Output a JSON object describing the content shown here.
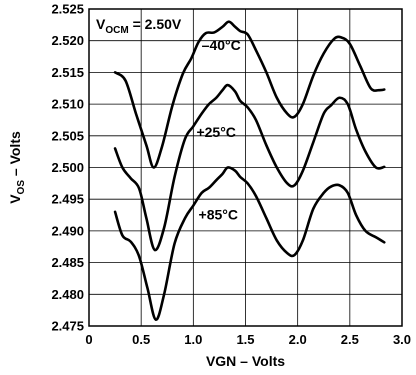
{
  "chart_data": {
    "type": "line",
    "xlabel": "VGN – Volts",
    "ylabel_main": "V",
    "ylabel_sub": "OS",
    "ylabel_rest": " – Volts",
    "annotation": {
      "prefix": "V",
      "sub": "OCM",
      "rest": " = 2.50V"
    },
    "xlim": [
      0,
      3.0
    ],
    "ylim": [
      2.475,
      2.525
    ],
    "xticks": [
      0,
      0.5,
      1.0,
      1.5,
      2.0,
      2.5,
      3.0
    ],
    "xtick_labels": [
      "0",
      "0.5",
      "1.0",
      "1.5",
      "2.0",
      "2.5",
      "3.0"
    ],
    "yticks": [
      2.475,
      2.48,
      2.485,
      2.49,
      2.495,
      2.5,
      2.505,
      2.51,
      2.515,
      2.52,
      2.525
    ],
    "ytick_labels": [
      "2.475",
      "2.480",
      "2.485",
      "2.490",
      "2.495",
      "2.500",
      "2.505",
      "2.510",
      "2.515",
      "2.520",
      "2.525"
    ],
    "grid": true,
    "series": [
      {
        "name": "–40°C",
        "label_at": [
          1.08,
          2.5185
        ],
        "points": [
          [
            0.25,
            2.515
          ],
          [
            0.35,
            2.5137
          ],
          [
            0.45,
            2.5085
          ],
          [
            0.55,
            2.5035
          ],
          [
            0.62,
            2.5
          ],
          [
            0.7,
            2.5033
          ],
          [
            0.8,
            2.5098
          ],
          [
            0.9,
            2.5148
          ],
          [
            0.98,
            2.5172
          ],
          [
            1.05,
            2.5198
          ],
          [
            1.12,
            2.5212
          ],
          [
            1.2,
            2.5213
          ],
          [
            1.28,
            2.5222
          ],
          [
            1.34,
            2.523
          ],
          [
            1.4,
            2.5222
          ],
          [
            1.45,
            2.5215
          ],
          [
            1.52,
            2.521
          ],
          [
            1.6,
            2.5185
          ],
          [
            1.7,
            2.515
          ],
          [
            1.8,
            2.511
          ],
          [
            1.9,
            2.5085
          ],
          [
            1.97,
            2.508
          ],
          [
            2.05,
            2.51
          ],
          [
            2.15,
            2.5145
          ],
          [
            2.25,
            2.518
          ],
          [
            2.35,
            2.5203
          ],
          [
            2.42,
            2.5205
          ],
          [
            2.5,
            2.5195
          ],
          [
            2.6,
            2.516
          ],
          [
            2.7,
            2.5125
          ],
          [
            2.78,
            2.5122
          ],
          [
            2.83,
            2.5123
          ]
        ]
      },
      {
        "name": "+25°C",
        "label_at": [
          1.03,
          2.5048
        ],
        "points": [
          [
            0.25,
            2.503
          ],
          [
            0.32,
            2.5
          ],
          [
            0.4,
            2.4983
          ],
          [
            0.48,
            2.4967
          ],
          [
            0.55,
            2.492
          ],
          [
            0.63,
            2.487
          ],
          [
            0.72,
            2.4905
          ],
          [
            0.82,
            2.4985
          ],
          [
            0.92,
            2.5045
          ],
          [
            1.0,
            2.5065
          ],
          [
            1.08,
            2.5085
          ],
          [
            1.15,
            2.51
          ],
          [
            1.22,
            2.511
          ],
          [
            1.28,
            2.5122
          ],
          [
            1.33,
            2.513
          ],
          [
            1.4,
            2.512
          ],
          [
            1.45,
            2.5105
          ],
          [
            1.52,
            2.5095
          ],
          [
            1.6,
            2.5075
          ],
          [
            1.7,
            2.5035
          ],
          [
            1.8,
            2.5
          ],
          [
            1.9,
            2.4975
          ],
          [
            1.97,
            2.4972
          ],
          [
            2.05,
            2.4995
          ],
          [
            2.15,
            2.504
          ],
          [
            2.25,
            2.5085
          ],
          [
            2.32,
            2.5098
          ],
          [
            2.4,
            2.511
          ],
          [
            2.48,
            2.51
          ],
          [
            2.56,
            2.506
          ],
          [
            2.65,
            2.5025
          ],
          [
            2.75,
            2.5
          ],
          [
            2.83,
            2.5001
          ]
        ]
      },
      {
        "name": "+85°C",
        "label_at": [
          1.05,
          2.4918
        ],
        "points": [
          [
            0.25,
            2.493
          ],
          [
            0.32,
            2.4893
          ],
          [
            0.4,
            2.4883
          ],
          [
            0.48,
            2.486
          ],
          [
            0.56,
            2.481
          ],
          [
            0.64,
            2.476
          ],
          [
            0.72,
            2.48
          ],
          [
            0.82,
            2.488
          ],
          [
            0.92,
            2.492
          ],
          [
            1.0,
            2.494
          ],
          [
            1.08,
            2.496
          ],
          [
            1.15,
            2.4968
          ],
          [
            1.22,
            2.498
          ],
          [
            1.28,
            2.499
          ],
          [
            1.33,
            2.5
          ],
          [
            1.4,
            2.4995
          ],
          [
            1.45,
            2.4985
          ],
          [
            1.52,
            2.4975
          ],
          [
            1.6,
            2.4955
          ],
          [
            1.7,
            2.492
          ],
          [
            1.8,
            2.4885
          ],
          [
            1.9,
            2.4865
          ],
          [
            1.97,
            2.4862
          ],
          [
            2.05,
            2.4885
          ],
          [
            2.15,
            2.4935
          ],
          [
            2.25,
            2.496
          ],
          [
            2.32,
            2.497
          ],
          [
            2.4,
            2.4972
          ],
          [
            2.48,
            2.496
          ],
          [
            2.56,
            2.4925
          ],
          [
            2.65,
            2.49
          ],
          [
            2.75,
            2.489
          ],
          [
            2.83,
            2.4882
          ]
        ]
      }
    ]
  }
}
